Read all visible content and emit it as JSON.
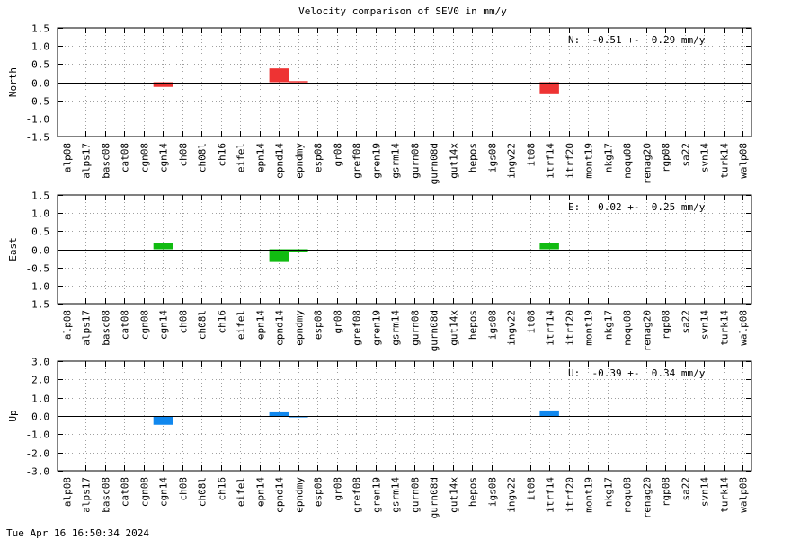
{
  "page": {
    "title": "Velocity comparison of SEV0 in mm/y",
    "timestamp": "Tue Apr 16 16:50:34 2024"
  },
  "chart_data": [
    {
      "type": "bar",
      "ylabel": "North",
      "ylim": [
        -1.5,
        1.5
      ],
      "yticks": [
        "-1.5",
        "-1.0",
        "-0.5",
        "0.0",
        "0.5",
        "1.0",
        "1.5"
      ],
      "ytick_values": [
        -1.5,
        -1.0,
        -0.5,
        0.0,
        0.5,
        1.0,
        1.5
      ],
      "grid": true,
      "color": "#ee3333",
      "annotation": "N:  -0.51 +-  0.29 mm/y",
      "categories": [
        "alp08",
        "alps17",
        "basc08",
        "cat08",
        "cgn08",
        "cgn14",
        "ch08",
        "ch08l",
        "ch16",
        "eifel",
        "epn14",
        "epnd14",
        "epndmy",
        "esp08",
        "gr08",
        "gref08",
        "gren19",
        "gsrm14",
        "gurn08",
        "gurn08d",
        "gut14x",
        "hepos",
        "igs08",
        "ingv22",
        "it08",
        "itrf14",
        "itrf20",
        "mont19",
        "nkg17",
        "noqu08",
        "renag20",
        "rgp08",
        "sa22",
        "svn14",
        "turk14",
        "walp08"
      ],
      "values": [
        0,
        0,
        0,
        0,
        0,
        -0.13,
        0,
        0,
        0,
        0,
        0,
        0.38,
        0.03,
        0,
        0,
        0,
        0,
        0,
        0,
        0,
        0,
        0,
        0,
        0,
        0,
        -0.33,
        0,
        0,
        0,
        0,
        0,
        0,
        0,
        0,
        0,
        0
      ]
    },
    {
      "type": "bar",
      "ylabel": "East",
      "ylim": [
        -1.5,
        1.5
      ],
      "yticks": [
        "-1.5",
        "-1.0",
        "-0.5",
        "0.0",
        "0.5",
        "1.0",
        "1.5"
      ],
      "ytick_values": [
        -1.5,
        -1.0,
        -0.5,
        0.0,
        0.5,
        1.0,
        1.5
      ],
      "grid": true,
      "color": "#11bb11",
      "annotation": "E:   0.02 +-  0.25 mm/y",
      "categories": [
        "alp08",
        "alps17",
        "basc08",
        "cat08",
        "cgn08",
        "cgn14",
        "ch08",
        "ch08l",
        "ch16",
        "eifel",
        "epn14",
        "epnd14",
        "epndmy",
        "esp08",
        "gr08",
        "gref08",
        "gren19",
        "gsrm14",
        "gurn08",
        "gurn08d",
        "gut14x",
        "hepos",
        "igs08",
        "ingv22",
        "it08",
        "itrf14",
        "itrf20",
        "mont19",
        "nkg17",
        "noqu08",
        "renag20",
        "rgp08",
        "sa22",
        "svn14",
        "turk14",
        "walp08"
      ],
      "values": [
        0,
        0,
        0,
        0,
        0,
        0.17,
        0,
        0,
        0,
        0,
        0,
        -0.35,
        -0.08,
        0,
        0,
        0,
        0,
        0,
        0,
        0,
        0,
        0,
        0,
        0,
        0,
        0.17,
        0,
        0,
        0,
        0,
        0,
        0,
        0,
        0,
        0,
        0
      ]
    },
    {
      "type": "bar",
      "ylabel": "Up",
      "ylim": [
        -3.0,
        3.0
      ],
      "yticks": [
        "-3.0",
        "-2.0",
        "-1.0",
        "0.0",
        "1.0",
        "2.0",
        "3.0"
      ],
      "ytick_values": [
        -3.0,
        -2.0,
        -1.0,
        0.0,
        1.0,
        2.0,
        3.0
      ],
      "grid": true,
      "color": "#1188ee",
      "annotation": "U:  -0.39 +-  0.34 mm/y",
      "categories": [
        "alp08",
        "alps17",
        "basc08",
        "cat08",
        "cgn08",
        "cgn14",
        "ch08",
        "ch08l",
        "ch16",
        "eifel",
        "epn14",
        "epnd14",
        "epndmy",
        "esp08",
        "gr08",
        "gref08",
        "gren19",
        "gsrm14",
        "gurn08",
        "gurn08d",
        "gut14x",
        "hepos",
        "igs08",
        "ingv22",
        "it08",
        "itrf14",
        "itrf20",
        "mont19",
        "nkg17",
        "noqu08",
        "renag20",
        "rgp08",
        "sa22",
        "svn14",
        "turk14",
        "walp08"
      ],
      "values": [
        0,
        0,
        0,
        0,
        0,
        -0.48,
        0,
        0,
        0,
        0,
        0,
        0.2,
        -0.08,
        0,
        0,
        0,
        0,
        0,
        0,
        0,
        0,
        0,
        0,
        0,
        0,
        0.3,
        0,
        0,
        0,
        0,
        0,
        0,
        0,
        0,
        0,
        0
      ]
    }
  ]
}
